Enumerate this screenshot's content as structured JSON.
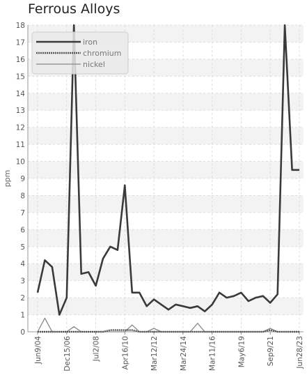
{
  "chart_data": {
    "type": "line",
    "title": "Ferrous Alloys",
    "ylabel": "ppm",
    "xlabel": "",
    "ylim": [
      0,
      18
    ],
    "yticks": [
      0,
      1,
      2,
      3,
      4,
      5,
      6,
      7,
      8,
      9,
      10,
      11,
      12,
      13,
      14,
      15,
      16,
      17,
      18
    ],
    "grid": true,
    "legend_position": "top-left",
    "xtick_labels": [
      "Jun9/04",
      "Dec15/06",
      "Jul2/08",
      "Apr16/10",
      "Mar12/12",
      "Mar24/14",
      "Mar11/16",
      "May6/19",
      "Sep9/21",
      "Jun28/23"
    ],
    "series": [
      {
        "name": "iron",
        "color": "#3a3a3a",
        "values": [
          2.3,
          4.2,
          3.8,
          1.0,
          2.0,
          18.0,
          3.4,
          3.5,
          2.7,
          4.3,
          5.0,
          4.8,
          8.6,
          2.3,
          2.3,
          1.5,
          1.9,
          1.6,
          1.3,
          1.6,
          1.5,
          1.4,
          1.5,
          1.2,
          1.6,
          2.3,
          2.0,
          2.1,
          2.3,
          1.8,
          2.0,
          2.1,
          1.7,
          2.2,
          18.0,
          9.5,
          9.5
        ]
      },
      {
        "name": "chromium",
        "color": "#555555",
        "values": [
          0.0,
          0.0,
          0.0,
          0.0,
          0.0,
          0.0,
          0.0,
          0.0,
          0.0,
          0.0,
          0.1,
          0.1,
          0.1,
          0.1,
          0.0,
          0.0,
          0.0,
          0.0,
          0.0,
          0.0,
          0.0,
          0.0,
          0.0,
          0.0,
          0.0,
          0.0,
          0.0,
          0.0,
          0.0,
          0.0,
          0.0,
          0.0,
          0.1,
          0.0,
          0.0,
          0.0,
          0.0
        ]
      },
      {
        "name": "nickel",
        "color": "#888888",
        "values": [
          0.0,
          0.8,
          0.0,
          0.0,
          0.0,
          0.3,
          0.0,
          0.0,
          0.0,
          0.0,
          0.0,
          0.0,
          0.0,
          0.4,
          0.0,
          0.0,
          0.2,
          0.0,
          0.0,
          0.0,
          0.0,
          0.0,
          0.5,
          0.0,
          0.0,
          0.0,
          0.0,
          0.0,
          0.0,
          0.0,
          0.0,
          0.0,
          0.2,
          0.0,
          0.0,
          0.0,
          0.0
        ]
      }
    ]
  }
}
